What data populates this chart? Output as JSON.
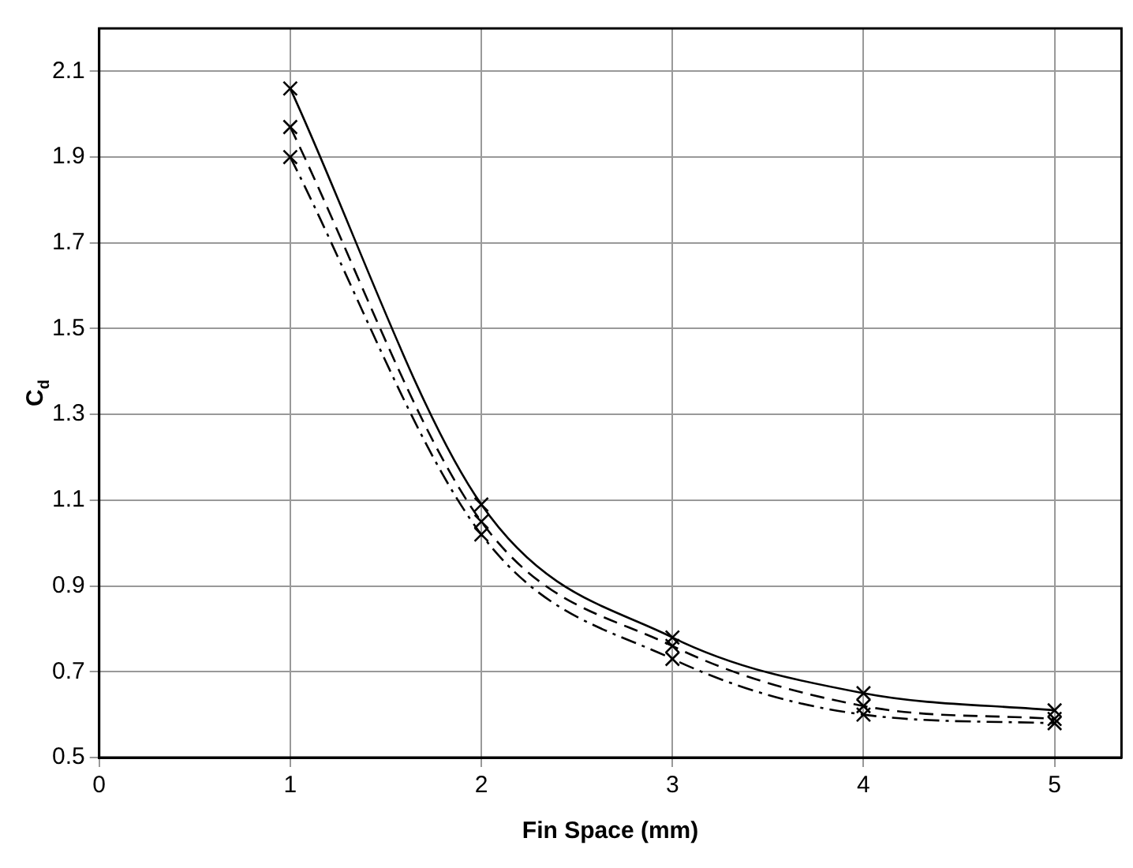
{
  "chart_data": {
    "type": "line",
    "xlabel": "Fin Space (mm)",
    "ylabel": "C$_{d}$",
    "x": [
      1,
      2,
      3,
      4,
      5
    ],
    "series": [
      {
        "color": "#000000",
        "values": [
          2.06,
          1.09,
          0.78,
          0.65,
          0.61
        ],
        "line_style": "solid"
      },
      {
        "color": "#000000",
        "values": [
          1.97,
          1.05,
          0.76,
          0.62,
          0.59
        ],
        "line_style": "dashed"
      },
      {
        "color": "#000000",
        "values": [
          1.9,
          1.02,
          0.73,
          0.6,
          0.58
        ],
        "line_style": "dashdot"
      }
    ],
    "xlim": [
      0,
      5.35
    ],
    "xticks": [
      0,
      1,
      2,
      3,
      4,
      5
    ],
    "ylim": [
      0.5,
      2.2
    ],
    "yticks": [
      0.5,
      0.7,
      0.9,
      1.1,
      1.3,
      1.5,
      1.7,
      1.9,
      2.1
    ],
    "grid": true,
    "marker": "cross",
    "legend": false
  }
}
